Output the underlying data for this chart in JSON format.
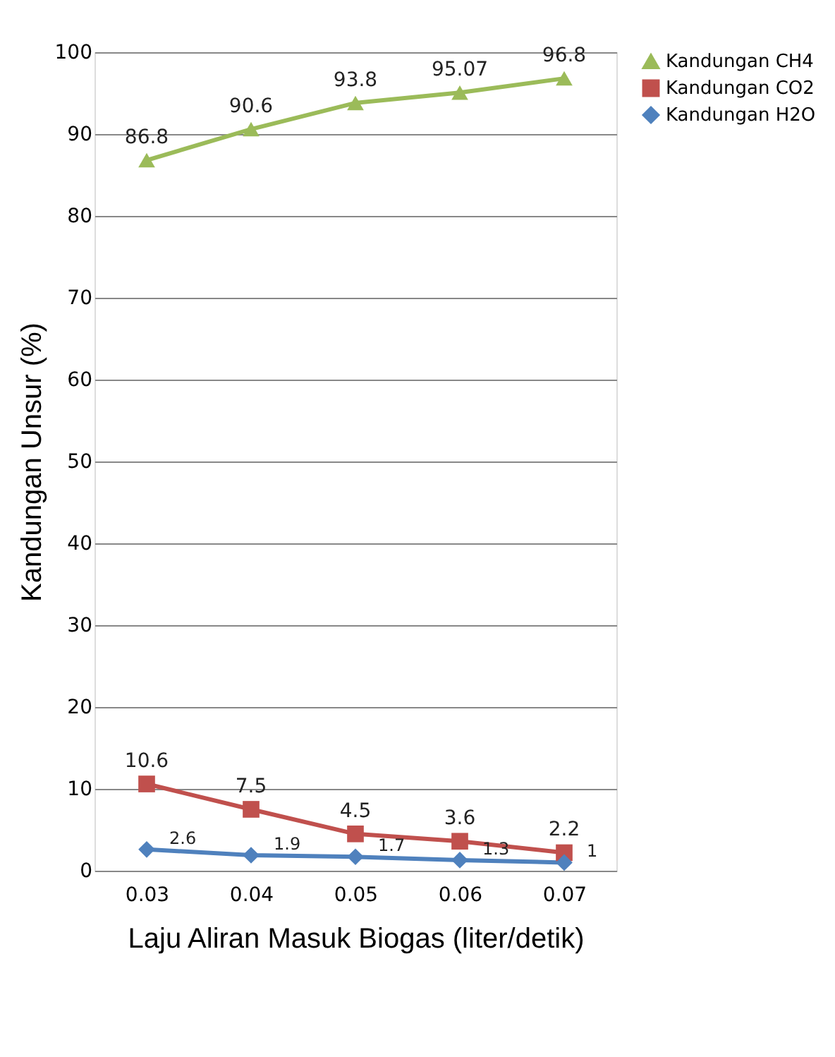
{
  "chart_data": {
    "type": "line",
    "xlabel": "Laju Aliran Masuk Biogas (liter/detik)",
    "ylabel": "Kandungan Unsur (%)",
    "categories": [
      "0.03",
      "0.04",
      "0.05",
      "0.06",
      "0.07"
    ],
    "series": [
      {
        "name": "Kandungan CH4",
        "color": "#9bbb59",
        "marker": "triangle",
        "values": [
          86.8,
          90.6,
          93.8,
          95.07,
          96.8
        ]
      },
      {
        "name": "Kandungan CO2",
        "color": "#c0504d",
        "marker": "square",
        "values": [
          10.6,
          7.5,
          4.5,
          3.6,
          2.2
        ]
      },
      {
        "name": "Kandungan H2O",
        "color": "#4f81bd",
        "marker": "diamond",
        "values": [
          2.6,
          1.9,
          1.7,
          1.3,
          1
        ]
      }
    ],
    "ylim": [
      0,
      100
    ],
    "yticks": [
      0,
      10,
      20,
      30,
      40,
      50,
      60,
      70,
      80,
      90,
      100
    ],
    "grid": "y",
    "legend": "right",
    "data_labels": true
  }
}
